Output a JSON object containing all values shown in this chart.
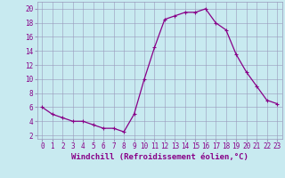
{
  "x": [
    0,
    1,
    2,
    3,
    4,
    5,
    6,
    7,
    8,
    9,
    10,
    11,
    12,
    13,
    14,
    15,
    16,
    17,
    18,
    19,
    20,
    21,
    22,
    23
  ],
  "y": [
    6,
    5,
    4.5,
    4,
    4,
    3.5,
    3,
    3,
    2.5,
    5,
    10,
    14.5,
    18.5,
    19,
    19.5,
    19.5,
    20,
    18,
    17,
    13.5,
    11,
    9,
    7,
    6.5
  ],
  "line_color": "#880088",
  "marker": "+",
  "marker_size": 3,
  "marker_linewidth": 0.8,
  "linewidth": 0.9,
  "background_color": "#c8eaf0",
  "grid_color": "#9999bb",
  "xlabel": "Windchill (Refroidissement éolien,°C)",
  "xlabel_fontsize": 6.5,
  "tick_fontsize": 5.5,
  "ylim": [
    1.5,
    21
  ],
  "yticks": [
    2,
    4,
    6,
    8,
    10,
    12,
    14,
    16,
    18,
    20
  ],
  "xlim": [
    -0.5,
    23.5
  ],
  "xticks": [
    0,
    1,
    2,
    3,
    4,
    5,
    6,
    7,
    8,
    9,
    10,
    11,
    12,
    13,
    14,
    15,
    16,
    17,
    18,
    19,
    20,
    21,
    22,
    23
  ]
}
